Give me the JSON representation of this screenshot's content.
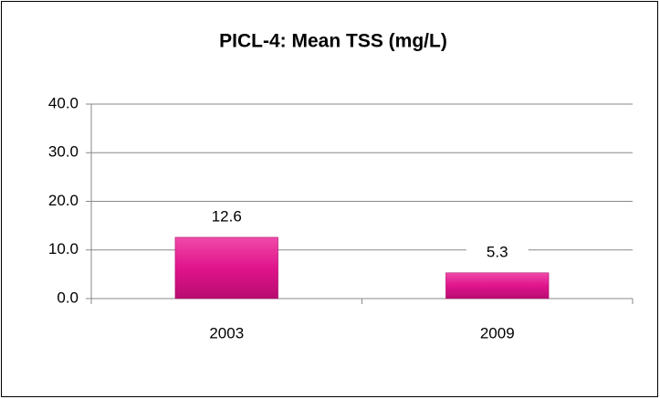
{
  "chart_data": {
    "type": "bar",
    "title": "PICL-4: Mean TSS (mg/L)",
    "categories": [
      "2003",
      "2009"
    ],
    "values": [
      12.6,
      5.3
    ],
    "color": "#e0148c",
    "ylim": [
      0,
      40
    ],
    "yticks": [
      {
        "value": 0,
        "label": "0.0"
      },
      {
        "value": 10,
        "label": "10.0"
      },
      {
        "value": 20,
        "label": "20.0"
      },
      {
        "value": 30,
        "label": "30.0"
      },
      {
        "value": 40,
        "label": "40.0"
      }
    ],
    "grid": true
  }
}
